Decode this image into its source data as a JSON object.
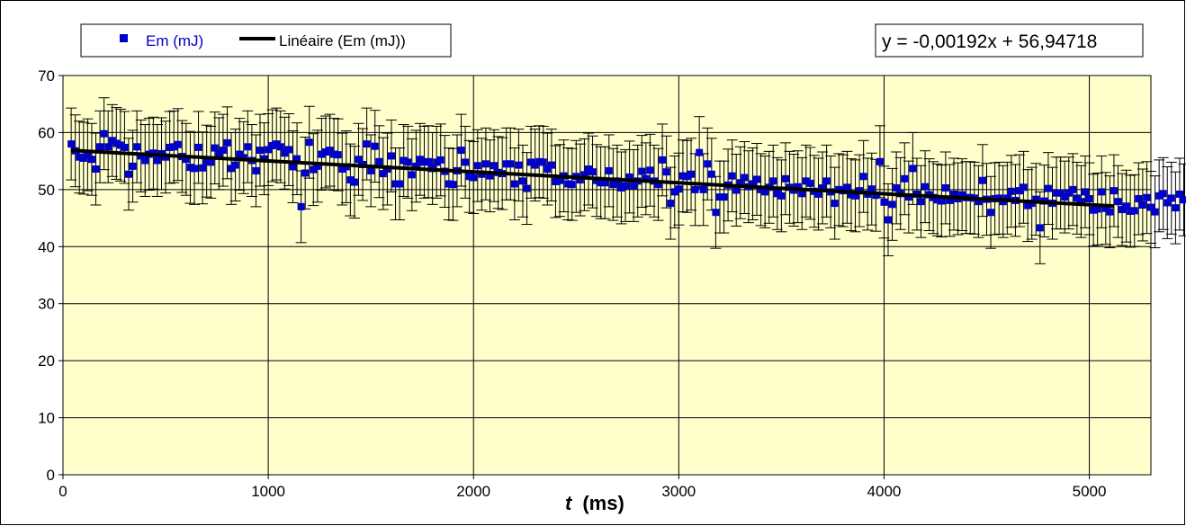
{
  "chart_data": {
    "type": "scatter",
    "xlabel_var": "t",
    "xlabel_unit": "(ms)",
    "ylabel": "",
    "xlim": [
      0,
      5300
    ],
    "ylim": [
      0,
      70
    ],
    "x_ticks": [
      0,
      1000,
      2000,
      3000,
      4000,
      5000
    ],
    "y_ticks": [
      0,
      10,
      20,
      30,
      40,
      50,
      60,
      70
    ],
    "grid": true,
    "legend_position": "top-left",
    "equation_position": "top-right",
    "plot_background": "#ffffcc",
    "series": [
      {
        "name": "Em (mJ)",
        "kind": "scatter",
        "color": "#0000cc",
        "marker": "square",
        "error_bar": 6.3,
        "x_start": 40,
        "x_step": 20,
        "values": [
          58.0,
          56.8,
          55.7,
          55.5,
          56.1,
          55.3,
          53.6,
          57.5,
          59.8,
          57.5,
          58.6,
          58.1,
          57.8,
          57.4,
          52.7,
          54.1,
          57.5,
          55.9,
          55.1,
          56.2,
          56.4,
          55.1,
          56.3,
          55.7,
          57.4,
          57.5,
          57.9,
          55.8,
          55.3,
          53.9,
          53.7,
          57.4,
          53.8,
          55.0,
          54.8,
          57.3,
          56.3,
          56.9,
          58.2,
          53.7,
          54.3,
          56.2,
          55.6,
          57.5,
          55.1,
          53.3,
          56.9,
          55.4,
          57.0,
          57.7,
          58.0,
          57.5,
          56.4,
          57.0,
          54.0,
          55.4,
          47.0,
          52.9,
          58.3,
          53.5,
          54.1,
          56.2,
          56.6,
          56.9,
          56.2,
          56.1,
          53.6,
          54.0,
          51.7,
          51.3,
          55.3,
          54.4,
          58.0,
          53.3,
          57.6,
          54.9,
          52.8,
          53.6,
          55.9,
          51.0,
          51.0,
          55.1,
          54.8,
          52.6,
          54.1,
          55.3,
          54.8,
          54.9,
          53.7,
          54.8,
          55.2,
          53.2,
          51.0,
          50.9,
          53.3,
          56.9,
          54.8,
          52.3,
          52.1,
          54.2,
          52.7,
          54.5,
          52.4,
          54.2,
          53.0,
          52.8,
          54.5,
          54.5,
          51.0,
          54.3,
          51.5,
          50.2,
          54.8,
          54.3,
          54.9,
          54.8,
          53.6,
          54.3,
          51.4,
          51.6,
          52.4,
          51.0,
          50.9,
          52.3,
          51.7,
          52.6,
          53.6,
          53.1,
          51.6,
          51.2,
          51.2,
          53.3,
          50.9,
          51.5,
          50.3,
          50.7,
          52.2,
          50.7,
          51.5,
          53.2,
          51.9,
          53.4,
          51.5,
          50.9,
          55.2,
          53.1,
          47.6,
          49.6,
          50.1,
          52.4,
          52.3,
          52.7,
          50.0,
          56.5,
          50.0,
          54.5,
          52.7,
          46.0,
          48.7,
          48.7,
          50.8,
          52.4,
          49.9,
          51.2,
          52.1,
          50.5,
          51.0,
          51.8,
          50.0,
          49.6,
          50.4,
          51.5,
          49.3,
          48.9,
          51.9,
          50.4,
          49.9,
          50.5,
          49.3,
          51.5,
          51.1,
          49.7,
          49.2,
          50.3,
          51.5,
          49.6,
          47.6,
          50.0,
          49.8,
          50.4,
          49.1,
          48.9,
          49.8,
          52.3,
          49.2,
          50.1,
          49.0,
          54.9,
          47.8,
          44.7,
          47.4,
          50.3,
          49.3,
          51.9,
          48.7,
          53.7,
          49.2,
          47.9,
          50.5,
          49.1,
          48.6,
          48.2,
          48.0,
          50.3,
          48.1,
          49.2,
          48.4,
          49.1,
          48.6,
          48.6,
          48.5,
          47.9,
          51.6,
          48.3,
          46.0,
          48.4,
          48.5,
          47.9,
          48.5,
          49.7,
          48.1,
          49.8,
          50.4,
          47.2,
          47.6,
          48.3,
          43.3,
          48.0,
          50.2,
          47.6,
          49.4,
          49.4,
          48.7,
          49.4,
          50.0,
          48.5,
          47.9,
          49.6,
          48.4,
          46.4,
          46.6,
          49.6,
          46.7,
          46.1,
          49.8,
          47.9,
          46.5,
          47.1,
          46.2,
          46.3,
          48.4,
          47.3,
          48.6,
          46.9,
          46.1,
          48.9,
          49.3,
          47.7,
          48.5,
          46.8,
          49.2,
          48.2
        ]
      },
      {
        "name": "Linéaire (Em (mJ))",
        "kind": "line",
        "color": "#000000",
        "slope": -0.00192,
        "intercept": 56.94718,
        "x_range": [
          40,
          5120
        ]
      }
    ],
    "annotations": [
      {
        "text": "y = -0,00192x + 56,94718"
      }
    ]
  }
}
